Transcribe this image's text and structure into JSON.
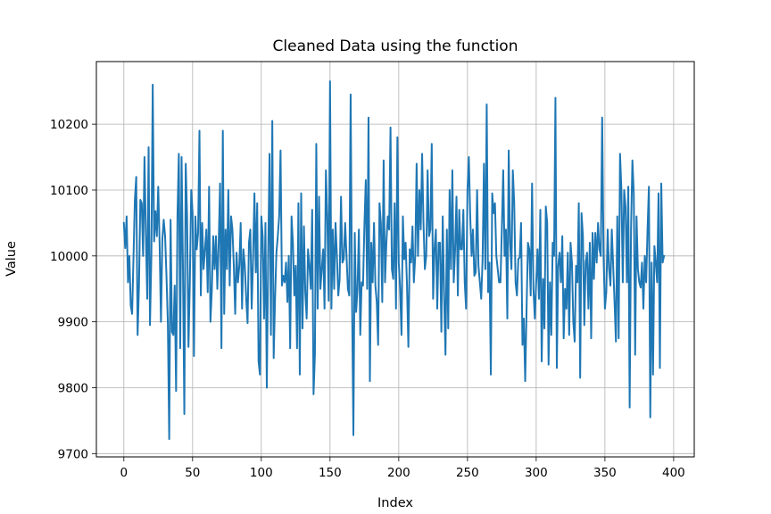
{
  "chart_data": {
    "type": "line",
    "title": "Cleaned Data using the function",
    "xlabel": "Index",
    "ylabel": "Value",
    "xlim": [
      -20,
      415
    ],
    "ylim": [
      9695,
      10295
    ],
    "xticks": [
      0,
      50,
      100,
      150,
      200,
      250,
      300,
      350,
      400
    ],
    "yticks": [
      9700,
      9800,
      9900,
      10000,
      10100,
      10200
    ],
    "grid": true,
    "line_color": "#1f77b4",
    "series": [
      {
        "values": [
          10050,
          10012,
          10060,
          9960,
          10000,
          9925,
          9912,
          9998,
          10085,
          10120,
          9880,
          9955,
          10085,
          10080,
          10000,
          10150,
          10035,
          9935,
          10165,
          9895,
          9998,
          10260,
          10022,
          10068,
          10030,
          10105,
          10020,
          9900,
          10025,
          10055,
          10030,
          9970,
          9898,
          9722,
          10055,
          9885,
          9880,
          9955,
          9795,
          10060,
          10155,
          9860,
          10150,
          9980,
          9760,
          10140,
          10060,
          9862,
          9960,
          10100,
          10065,
          9848,
          10060,
          10010,
          10035,
          10190,
          9940,
          10050,
          9980,
          10010,
          10040,
          9945,
          10105,
          9900,
          9948,
          10030,
          9980,
          10030,
          9950,
          10020,
          10110,
          9860,
          10190,
          9912,
          10040,
          9980,
          10100,
          9955,
          10060,
          10040,
          9985,
          9912,
          10005,
          9960,
          9985,
          10050,
          9920,
          10010,
          9985,
          9935,
          9898,
          10020,
          10040,
          9920,
          9995,
          10095,
          9975,
          10080,
          9840,
          9820,
          10060,
          10030,
          9905,
          10050,
          9800,
          10000,
          10155,
          9880,
          10205,
          9845,
          9935,
          10005,
          10030,
          10060,
          10160,
          9955,
          9970,
          9960,
          9990,
          9930,
          10000,
          9860,
          10060,
          10020,
          9940,
          9985,
          9860,
          10080,
          9820,
          10095,
          9890,
          10045,
          9945,
          9905,
          10010,
          9985,
          9950,
          10070,
          9790,
          9850,
          10170,
          9920,
          10090,
          9950,
          9980,
          10010,
          9920,
          10130,
          10060,
          9932,
          10265,
          9920,
          10040,
          9950,
          10050,
          10000,
          9940,
          9965,
          10090,
          9990,
          9995,
          10050,
          10000,
          9950,
          9940,
          10245,
          9940,
          9728,
          10035,
          9915,
          9950,
          10040,
          9880,
          9960,
          9955,
          10045,
          10115,
          9950,
          10210,
          9810,
          10020,
          9960,
          10050,
          9955,
          9930,
          9865,
          10080,
          10050,
          9930,
          10145,
          9960,
          10020,
          10060,
          10040,
          10195,
          9980,
          9965,
          10080,
          9920,
          10180,
          9990,
          9950,
          9880,
          10060,
          9995,
          10020,
          9955,
          9862,
          10010,
          9990,
          10045,
          9960,
          10000,
          10140,
          10000,
          10100,
          10040,
          10155,
          10050,
          9980,
          10000,
          10130,
          10030,
          10040,
          10170,
          9935,
          10010,
          10040,
          9920,
          10020,
          10020,
          9885,
          10060,
          9940,
          9850,
          10040,
          9890,
          10100,
          9980,
          10130,
          9960,
          10010,
          10090,
          9940,
          10070,
          10010,
          10010,
          10070,
          9960,
          9920,
          10100,
          10150,
          10060,
          10000,
          10040,
          9970,
          9975,
          10100,
          9985,
          9960,
          9935,
          9995,
          10140,
          9980,
          10230,
          9945,
          9990,
          9820,
          10095,
          10065,
          10080,
          10000,
          9980,
          9960,
          9960,
          10040,
          10130,
          10000,
          10040,
          9905,
          10160,
          10020,
          9980,
          10130,
          10080,
          9960,
          9940,
          9995,
          9998,
          10050,
          9865,
          9905,
          9810,
          9920,
          10020,
          10010,
          9940,
          10110,
          9950,
          9905,
          9960,
          10010,
          9935,
          10070,
          9840,
          9965,
          9890,
          10075,
          10050,
          9835,
          9960,
          9880,
          10020,
          10000,
          10240,
          9830,
          9985,
          10005,
          9960,
          10030,
          9875,
          9950,
          9920,
          10005,
          9880,
          10020,
          9990,
          9900,
          9870,
          9985,
          9960,
          10080,
          9815,
          10065,
          10030,
          9895,
          9990,
          10005,
          9920,
          10020,
          9875,
          10035,
          9965,
          10035,
          9990,
          10050,
          10010,
          10000,
          10210,
          10000,
          9920,
          9945,
          10040,
          9980,
          9955,
          10040,
          9985,
          9930,
          9870,
          10060,
          9875,
          10155,
          10100,
          9960,
          10100,
          10075,
          9960,
          10105,
          9770,
          10040,
          10145,
          10095,
          9850,
          10060,
          9980,
          9960,
          9952,
          9990,
          9920,
          10000,
          9960,
          10040,
          10105,
          9755,
          9990,
          9820,
          10015,
          9990,
          9960,
          10095,
          9830,
          10110,
          9990,
          10000
        ]
      }
    ]
  }
}
